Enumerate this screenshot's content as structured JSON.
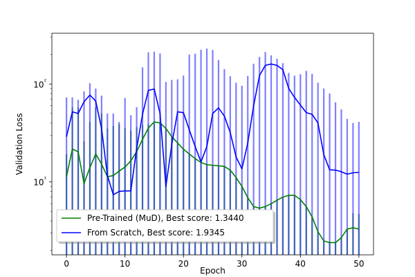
{
  "chart_data": {
    "type": "line",
    "xlabel": "Epoch",
    "ylabel": "Validation Loss",
    "yscale": "log",
    "xlim": [
      -2.5,
      52.5
    ],
    "ylim": [
      1.8,
      330
    ],
    "xticks": [
      0,
      10,
      20,
      30,
      40,
      50
    ],
    "yticks": [
      10,
      100
    ],
    "ytick_labels": [
      "10¹",
      "10²"
    ],
    "grid": false,
    "legend_position": "lower-left",
    "series": [
      {
        "name": "Pre-Trained (MuD), Best score: 1.3440",
        "color": "#008000",
        "x": [
          0,
          1,
          2,
          3,
          4,
          5,
          6,
          7,
          8,
          9,
          10,
          11,
          12,
          13,
          14,
          15,
          16,
          17,
          18,
          19,
          20,
          21,
          22,
          23,
          24,
          25,
          26,
          27,
          28,
          29,
          30,
          31,
          32,
          33,
          34,
          35,
          36,
          37,
          38,
          39,
          40,
          41,
          42,
          43,
          44,
          45,
          46,
          47,
          48,
          49,
          50
        ],
        "y": [
          11.3,
          21.7,
          20.3,
          9.6,
          14.0,
          19.3,
          15.2,
          11.3,
          11.6,
          12.9,
          14.2,
          16.4,
          20.4,
          27.2,
          35.5,
          41.0,
          40.0,
          35.2,
          29.0,
          25.0,
          21.6,
          19.3,
          17.3,
          15.8,
          15.0,
          14.8,
          14.6,
          14.4,
          13.2,
          11.1,
          9.0,
          6.9,
          5.6,
          5.4,
          5.6,
          6.0,
          6.5,
          7.0,
          7.3,
          7.3,
          6.6,
          5.6,
          4.4,
          3.1,
          2.5,
          2.4,
          2.4,
          2.7,
          3.3,
          3.4,
          3.3
        ],
        "err_hi": [
          19.2,
          58.0,
          57.3,
          26.1,
          40.8,
          57.9,
          50.0,
          35.0,
          37.2,
          38.9,
          35.3,
          33.3,
          36.3,
          38.2,
          39.2,
          39.8,
          40.0,
          35.2,
          29.0,
          25.0,
          21.6,
          19.3,
          17.3,
          15.8,
          15.0,
          14.8,
          14.6,
          14.4,
          13.2,
          11.1,
          9.0,
          6.9,
          5.6,
          5.4,
          5.6,
          6.0,
          6.5,
          7.0,
          7.3,
          7.3,
          6.6,
          5.6,
          4.4,
          3.1,
          2.5,
          2.4,
          2.4,
          2.7,
          3.3,
          4.8,
          4.7
        ],
        "err_lo": [
          1.8,
          1.8,
          1.8,
          1.8,
          1.8,
          1.8,
          1.8,
          1.8,
          1.8,
          1.8,
          1.8,
          1.8,
          1.8,
          1.8,
          1.8,
          1.8,
          1.8,
          1.8,
          1.8,
          1.8,
          1.8,
          1.8,
          1.8,
          1.8,
          1.8,
          1.8,
          1.8,
          1.8,
          1.8,
          1.8,
          1.8,
          1.8,
          1.8,
          1.8,
          1.8,
          1.8,
          1.8,
          1.8,
          1.8,
          1.8,
          1.8,
          1.8,
          1.8,
          1.8,
          1.8,
          1.8,
          1.8,
          1.8,
          1.8,
          1.8,
          1.8
        ]
      },
      {
        "name": "From Scratch, Best score: 1.9345",
        "color": "#0000ff",
        "x": [
          0,
          1,
          2,
          3,
          4,
          5,
          6,
          7,
          8,
          9,
          10,
          11,
          12,
          13,
          14,
          15,
          16,
          17,
          18,
          19,
          20,
          21,
          22,
          23,
          24,
          25,
          26,
          27,
          28,
          29,
          30,
          31,
          32,
          33,
          34,
          35,
          36,
          37,
          38,
          39,
          40,
          41,
          42,
          43,
          44,
          45,
          46,
          47,
          48,
          49,
          50
        ],
        "y": [
          29.0,
          52.0,
          50.0,
          66.0,
          77.0,
          67.0,
          35.0,
          11.6,
          7.4,
          8.0,
          8.1,
          8.1,
          22.0,
          49.0,
          86.0,
          89.0,
          50.0,
          9.0,
          24.0,
          52.0,
          51.0,
          34.0,
          23.0,
          16.0,
          23.0,
          50.0,
          57.0,
          47.0,
          32.0,
          18.0,
          13.6,
          25.0,
          60.0,
          122.0,
          155.0,
          160.0,
          155.0,
          140.0,
          90.0,
          73.0,
          61.0,
          51.0,
          49.0,
          40.0,
          19.0,
          13.3,
          13.2,
          12.7,
          12.0,
          12.4,
          12.5
        ],
        "err_hi": [
          73.0,
          73.0,
          69.0,
          84.0,
          102.0,
          90.0,
          76.0,
          50.0,
          50.0,
          41.0,
          72.0,
          48.0,
          58.0,
          148.0,
          211.0,
          214.0,
          205.0,
          105.0,
          110.0,
          112.0,
          122.0,
          200.0,
          204.0,
          224.0,
          230.0,
          223.0,
          176.0,
          142.0,
          120.0,
          103.0,
          96.0,
          121.0,
          161.0,
          189.0,
          212.0,
          196.0,
          181.0,
          163.0,
          130.0,
          122.0,
          126.0,
          136.0,
          127.0,
          103.0,
          90.0,
          80.0,
          65.0,
          55.0,
          44.0,
          40.0,
          41.0
        ],
        "err_lo": [
          1.8,
          1.8,
          1.8,
          1.8,
          1.8,
          1.8,
          1.8,
          1.8,
          1.8,
          1.8,
          1.8,
          1.8,
          1.8,
          1.8,
          1.8,
          1.8,
          1.8,
          1.8,
          1.8,
          1.8,
          1.8,
          1.8,
          1.8,
          1.8,
          1.8,
          1.8,
          1.8,
          1.8,
          1.8,
          1.8,
          1.8,
          1.8,
          1.8,
          1.8,
          1.8,
          1.8,
          1.8,
          1.8,
          1.8,
          1.8,
          1.8,
          1.8,
          1.8,
          1.8,
          1.8,
          1.8,
          1.8,
          1.8,
          1.8,
          1.8,
          1.8
        ]
      }
    ]
  }
}
